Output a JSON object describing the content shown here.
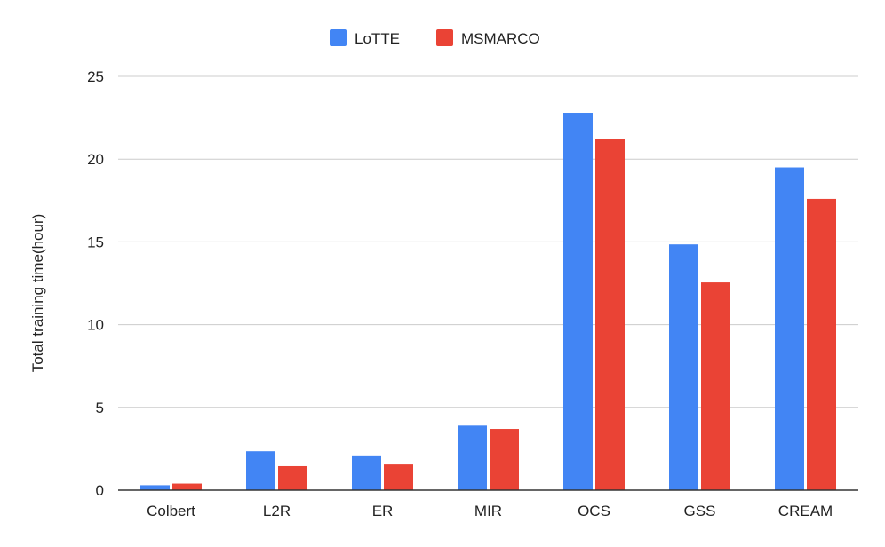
{
  "chart_data": {
    "type": "bar",
    "title": "",
    "xlabel": "",
    "ylabel": "Total training time(hour)",
    "categories": [
      "Colbert",
      "L2R",
      "ER",
      "MIR",
      "OCS",
      "GSS",
      "CREAM"
    ],
    "series": [
      {
        "name": "LoTTE",
        "color": "#4285f4",
        "values": [
          0.3,
          2.35,
          2.1,
          3.9,
          22.8,
          14.85,
          19.5
        ]
      },
      {
        "name": "MSMARCO",
        "color": "#ea4335",
        "values": [
          0.4,
          1.45,
          1.55,
          3.7,
          21.2,
          12.55,
          17.6
        ]
      }
    ],
    "ylim": [
      0,
      25
    ],
    "yticks": [
      0,
      5,
      10,
      15,
      20,
      25
    ],
    "grid": true,
    "legend": "top-center"
  }
}
